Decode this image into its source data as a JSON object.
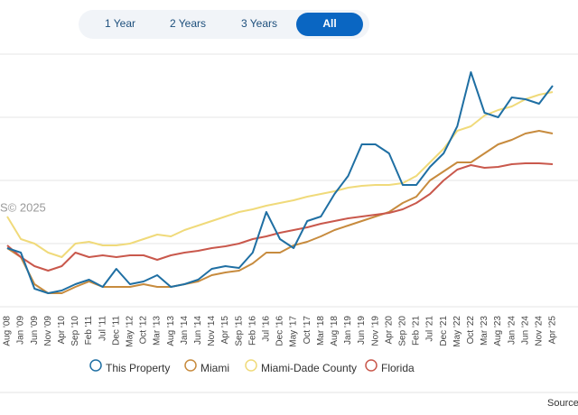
{
  "ui": {
    "range_buttons": [
      "1 Year",
      "2 Years",
      "3 Years",
      "All"
    ],
    "selected_range": "All",
    "selected_color": "#0a66c2",
    "watermark": "S© 2025",
    "source": "Source"
  },
  "chart_data": {
    "type": "line",
    "categories": [
      "Aug '08",
      "Jan '09",
      "Jun '09",
      "Nov '09",
      "Apr '10",
      "Sep '10",
      "Feb '11",
      "Jul '11",
      "Dec '11",
      "May '12",
      "Oct '12",
      "Mar '13",
      "Aug '13",
      "Jan '14",
      "Jun '14",
      "Nov '14",
      "Apr '15",
      "Sep '15",
      "Feb '16",
      "Jul '16",
      "Dec '16",
      "May '17",
      "Oct '17",
      "Mar '18",
      "Aug '18",
      "Jan '19",
      "Jun '19",
      "Nov '19",
      "Apr '20",
      "Sep '20",
      "Feb '21",
      "Jul '21",
      "Dec '21",
      "May '22",
      "Oct '22",
      "Mar '23",
      "Aug '23",
      "Jan '24",
      "Jun '24",
      "Nov '24",
      "Apr '25"
    ],
    "series": [
      {
        "name": "This Property",
        "color": "#1f6fa3",
        "values": [
          65,
          60,
          20,
          15,
          18,
          25,
          30,
          22,
          42,
          25,
          28,
          35,
          22,
          25,
          30,
          42,
          45,
          43,
          60,
          105,
          75,
          65,
          95,
          100,
          125,
          145,
          180,
          180,
          170,
          135,
          135,
          155,
          170,
          200,
          260,
          215,
          210,
          232,
          230,
          225,
          245
        ]
      },
      {
        "name": "Miami",
        "color": "#c78b3e",
        "values": [
          65,
          55,
          25,
          15,
          15,
          22,
          28,
          22,
          22,
          22,
          25,
          22,
          22,
          25,
          28,
          35,
          38,
          40,
          48,
          60,
          60,
          68,
          72,
          78,
          85,
          90,
          95,
          100,
          105,
          115,
          122,
          140,
          150,
          160,
          160,
          170,
          180,
          185,
          192,
          195,
          192
        ]
      },
      {
        "name": "Miami-Dade County",
        "color": "#f0da7a",
        "values": [
          100,
          75,
          70,
          60,
          55,
          70,
          72,
          68,
          68,
          70,
          75,
          80,
          78,
          85,
          90,
          95,
          100,
          105,
          108,
          112,
          115,
          118,
          122,
          125,
          128,
          132,
          134,
          135,
          135,
          137,
          145,
          160,
          175,
          195,
          200,
          212,
          218,
          222,
          230,
          235,
          238
        ]
      },
      {
        "name": "Florida",
        "color": "#c9584c",
        "values": [
          68,
          55,
          45,
          40,
          45,
          60,
          55,
          57,
          55,
          57,
          57,
          52,
          57,
          60,
          62,
          65,
          67,
          70,
          75,
          78,
          82,
          85,
          88,
          92,
          95,
          98,
          100,
          102,
          104,
          108,
          115,
          125,
          140,
          152,
          157,
          154,
          155,
          158,
          159,
          159,
          158
        ]
      }
    ],
    "ylim": [
      0,
      280
    ],
    "yticks": [
      0,
      70,
      140,
      210,
      280
    ],
    "grid": true
  }
}
